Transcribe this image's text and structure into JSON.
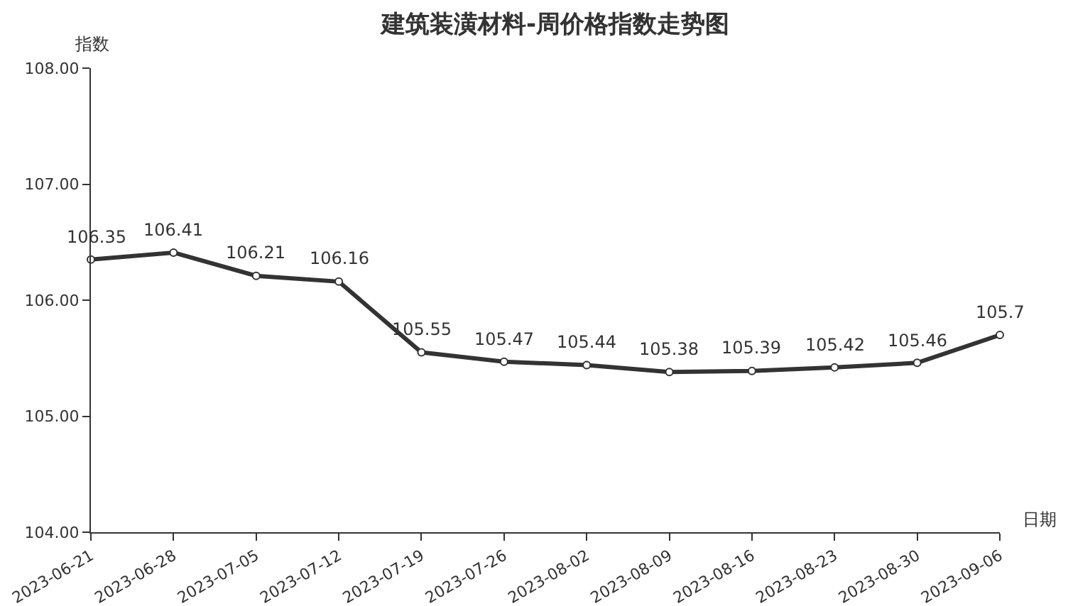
{
  "chart_data": {
    "type": "line",
    "title": "建筑装潢材料-周价格指数走势图",
    "ylabel": "指数",
    "xlabel": "日期",
    "categories": [
      "2023-06-21",
      "2023-06-28",
      "2023-07-05",
      "2023-07-12",
      "2023-07-19",
      "2023-07-26",
      "2023-08-02",
      "2023-08-09",
      "2023-08-16",
      "2023-08-23",
      "2023-08-30",
      "2023-09-06"
    ],
    "series": [
      {
        "color": "#333333",
        "values": [
          106.35,
          106.41,
          106.21,
          106.16,
          105.55,
          105.47,
          105.44,
          105.38,
          105.39,
          105.42,
          105.46,
          105.7
        ]
      }
    ],
    "ylim": [
      104,
      108
    ],
    "yticks": [
      {
        "value": 104,
        "label": "104.00"
      },
      {
        "value": 105,
        "label": "105.00"
      },
      {
        "value": 106,
        "label": "106.00"
      },
      {
        "value": 107,
        "label": "107.00"
      },
      {
        "value": 108,
        "label": "108.00"
      }
    ],
    "grid": false,
    "marker": "circle",
    "line_style": "solid",
    "data_labels": true
  }
}
